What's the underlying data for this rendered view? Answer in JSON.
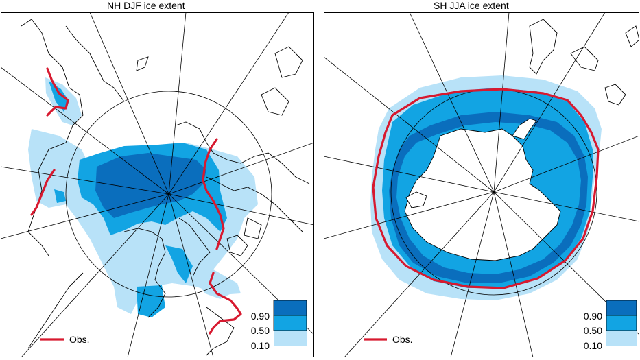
{
  "colors": {
    "ice_high": "#0a6ebd",
    "ice_mid": "#12a4e3",
    "ice_low": "#b8e2f8",
    "observed": "#d7192f",
    "land_outline": "#000000",
    "grid": "#000000"
  },
  "panels": [
    {
      "id": "nh",
      "title": "NH DJF ice extent",
      "obs_label": "Obs.",
      "legend": {
        "labels": [
          "0.90",
          "0.50",
          "0.10"
        ]
      }
    },
    {
      "id": "sh",
      "title": "SH JJA ice extent",
      "obs_label": "Obs.",
      "legend": {
        "labels": [
          "0.90",
          "0.50",
          "0.10"
        ]
      }
    }
  ]
}
